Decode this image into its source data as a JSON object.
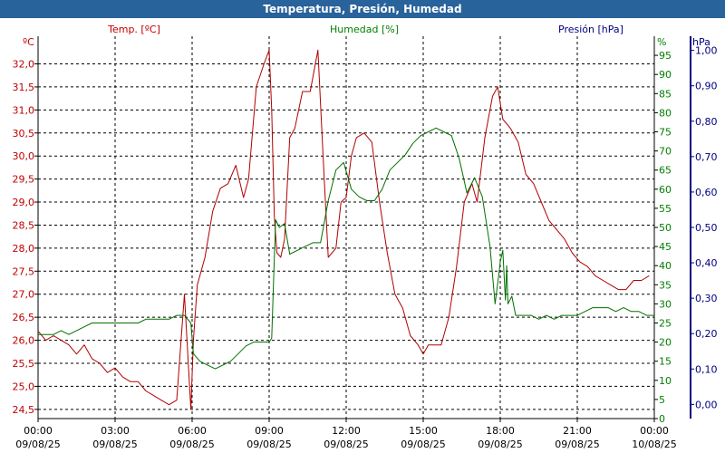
{
  "window": {
    "title": "Temperatura, Presión, Humedad"
  },
  "chart_data": {
    "type": "line",
    "title": "Temperatura, Presión, Humedad",
    "x": {
      "ticks": [
        "00:00",
        "03:00",
        "06:00",
        "09:00",
        "12:00",
        "15:00",
        "18:00",
        "21:00",
        "00:00"
      ],
      "dates": [
        "09/08/25",
        "09/08/25",
        "09/08/25",
        "09/08/25",
        "09/08/25",
        "09/08/25",
        "09/08/25",
        "09/08/25",
        "10/08/25"
      ],
      "range_hours": [
        0,
        24
      ]
    },
    "axes": {
      "temp": {
        "label": "Temp. [ºC]",
        "unit": "ºC",
        "color": "#c00000",
        "range": [
          24.3,
          32.6
        ],
        "ticks": [
          "24,5",
          "25,0",
          "25,5",
          "26,0",
          "26,5",
          "27,0",
          "27,5",
          "28,0",
          "28,5",
          "29,0",
          "29,5",
          "30,0",
          "30,5",
          "31,0",
          "31,5",
          "32,0"
        ]
      },
      "hum": {
        "label": "Humedad [%]",
        "unit": "%",
        "color": "#008000",
        "range": [
          0,
          100
        ],
        "ticks": [
          "0",
          "5",
          "10",
          "15",
          "20",
          "25",
          "30",
          "35",
          "40",
          "45",
          "50",
          "55",
          "60",
          "65",
          "70",
          "75",
          "80",
          "85",
          "90",
          "95"
        ]
      },
      "pres": {
        "label": "Presión [hPa]",
        "unit": "hPa",
        "color": "#000080",
        "range": [
          -0.04,
          1.04
        ],
        "ticks": [
          "0,00",
          "0,10",
          "0,20",
          "0,30",
          "0,40",
          "0,50",
          "0,60",
          "0,70",
          "0,80",
          "0,90",
          "1,00"
        ]
      }
    },
    "grid": true,
    "series": [
      {
        "name": "Temp. [ºC]",
        "axis": "temp",
        "color": "#b00000",
        "x": [
          0,
          0.3,
          0.6,
          0.9,
          1.2,
          1.5,
          1.8,
          2.1,
          2.4,
          2.7,
          3.0,
          3.3,
          3.6,
          3.9,
          4.2,
          4.5,
          4.8,
          5.1,
          5.4,
          5.7,
          5.95,
          6.05,
          6.2,
          6.5,
          6.8,
          7.1,
          7.4,
          7.7,
          8.0,
          8.2,
          8.5,
          8.8,
          9.0,
          9.1,
          9.2,
          9.3,
          9.45,
          9.6,
          9.8,
          10.0,
          10.3,
          10.6,
          10.9,
          11.1,
          11.3,
          11.6,
          11.8,
          12.0,
          12.2,
          12.4,
          12.7,
          13.0,
          13.3,
          13.6,
          13.9,
          14.2,
          14.5,
          14.8,
          15.0,
          15.2,
          15.4,
          15.7,
          16.0,
          16.3,
          16.6,
          16.9,
          17.1,
          17.4,
          17.7,
          17.9,
          18.1,
          18.4,
          18.7,
          19.0,
          19.3,
          19.6,
          19.9,
          20.2,
          20.5,
          20.8,
          21.1,
          21.4,
          21.7,
          22.0,
          22.3,
          22.6,
          22.9,
          23.2,
          23.5,
          23.8
        ],
        "values": [
          26.2,
          26.0,
          26.1,
          26.0,
          25.9,
          25.7,
          25.9,
          25.6,
          25.5,
          25.3,
          25.4,
          25.2,
          25.1,
          25.1,
          24.9,
          24.8,
          24.7,
          24.6,
          24.7,
          27.0,
          24.5,
          26.0,
          27.2,
          27.8,
          28.8,
          29.3,
          29.4,
          29.8,
          29.1,
          29.5,
          31.5,
          32.0,
          32.3,
          31.0,
          28.7,
          27.9,
          27.8,
          28.2,
          30.4,
          30.6,
          31.4,
          31.4,
          32.3,
          30.0,
          27.8,
          28.0,
          29.0,
          29.1,
          30.0,
          30.4,
          30.5,
          30.3,
          29.0,
          27.9,
          27.0,
          26.7,
          26.1,
          25.9,
          25.7,
          25.9,
          25.9,
          25.9,
          26.5,
          27.6,
          29.0,
          29.4,
          29.0,
          30.4,
          31.3,
          31.5,
          30.8,
          30.6,
          30.3,
          29.6,
          29.4,
          29.0,
          28.6,
          28.4,
          28.2,
          27.9,
          27.7,
          27.6,
          27.4,
          27.3,
          27.2,
          27.1,
          27.1,
          27.3,
          27.3,
          27.4
        ]
      },
      {
        "name": "Humedad [%]",
        "axis": "hum",
        "color": "#007000",
        "x": [
          0,
          0.3,
          0.6,
          0.9,
          1.2,
          1.5,
          1.8,
          2.1,
          2.4,
          2.7,
          3.0,
          3.3,
          3.6,
          3.9,
          4.2,
          4.5,
          4.8,
          5.1,
          5.4,
          5.7,
          5.95,
          6.05,
          6.3,
          6.6,
          6.9,
          7.2,
          7.5,
          7.8,
          8.1,
          8.4,
          8.7,
          9.0,
          9.1,
          9.25,
          9.4,
          9.6,
          9.8,
          10.1,
          10.4,
          10.7,
          11.0,
          11.3,
          11.6,
          11.9,
          12.2,
          12.5,
          12.8,
          13.1,
          13.4,
          13.7,
          14.0,
          14.3,
          14.6,
          14.9,
          15.2,
          15.5,
          15.8,
          16.1,
          16.4,
          16.7,
          17.0,
          17.3,
          17.6,
          17.8,
          17.95,
          18.0,
          18.1,
          18.2,
          18.25,
          18.3,
          18.45,
          18.6,
          18.9,
          19.2,
          19.5,
          19.8,
          20.1,
          20.4,
          20.7,
          21.0,
          21.3,
          21.6,
          21.9,
          22.2,
          22.5,
          22.8,
          23.1,
          23.4,
          23.7,
          24.0
        ],
        "values": [
          22,
          22,
          22,
          23,
          22,
          23,
          24,
          25,
          25,
          25,
          25,
          25,
          25,
          25,
          26,
          26,
          26,
          26,
          27,
          27,
          25,
          17,
          15,
          14,
          13,
          14,
          15,
          17,
          19,
          20,
          20,
          20,
          21,
          52,
          50,
          51,
          43,
          44,
          45,
          46,
          46,
          57,
          65,
          67,
          60,
          58,
          57,
          57,
          60,
          65,
          67,
          69,
          72,
          74,
          75,
          76,
          75,
          74,
          68,
          59,
          63,
          58,
          45,
          30,
          38,
          41,
          44,
          31,
          40,
          30,
          32,
          27,
          27,
          27,
          26,
          27,
          26,
          27,
          27,
          27,
          28,
          29,
          29,
          29,
          28,
          29,
          28,
          28,
          27,
          27
        ]
      }
    ]
  }
}
